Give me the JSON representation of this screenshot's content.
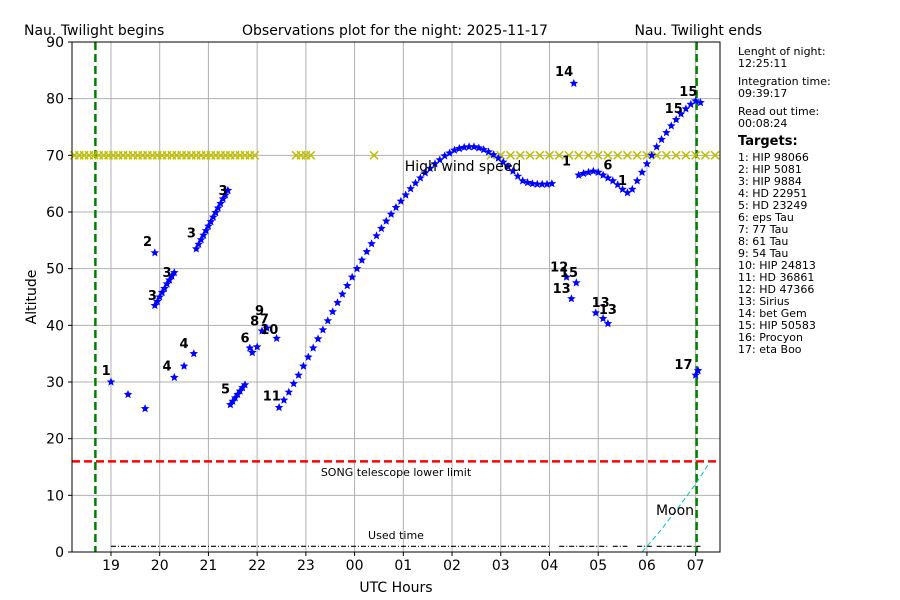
{
  "chart_data": {
    "type": "scatter",
    "title": "Observations plot for the night: 2025-11-17",
    "xlabel": "UTC Hours",
    "ylabel": "Altitude",
    "xlim": [
      18.2,
      31.5
    ],
    "ylim": [
      0,
      90
    ],
    "x_ticks": [
      {
        "v": 19,
        "label": "19"
      },
      {
        "v": 20,
        "label": "20"
      },
      {
        "v": 21,
        "label": "21"
      },
      {
        "v": 22,
        "label": "22"
      },
      {
        "v": 23,
        "label": "23"
      },
      {
        "v": 24,
        "label": "00"
      },
      {
        "v": 25,
        "label": "01"
      },
      {
        "v": 26,
        "label": "02"
      },
      {
        "v": 27,
        "label": "03"
      },
      {
        "v": 28,
        "label": "04"
      },
      {
        "v": 29,
        "label": "05"
      },
      {
        "v": 30,
        "label": "06"
      },
      {
        "v": 31,
        "label": "07"
      }
    ],
    "y_ticks": [
      0,
      10,
      20,
      30,
      40,
      50,
      60,
      70,
      80,
      90
    ],
    "grid": true,
    "twilight_begin": {
      "x": 18.68,
      "label": "Nau. Twilight begins"
    },
    "twilight_end": {
      "x": 31.02,
      "label": "Nau. Twilight ends"
    },
    "lower_limit": {
      "y": 16,
      "label": "SONG telescope lower limit"
    },
    "wind_limit": {
      "y": 70,
      "label": "High wind speed"
    },
    "used_time": {
      "y": 1,
      "label": "Used time",
      "segments": [
        [
          19.0,
          28.0
        ],
        [
          28.2,
          29.2
        ],
        [
          29.3,
          29.6
        ],
        [
          29.8,
          30.1
        ],
        [
          30.2,
          31.1
        ]
      ]
    },
    "moon": {
      "label": "Moon",
      "x": [
        29.9,
        30.3,
        30.7,
        31.0,
        31.3
      ],
      "y": [
        0,
        4,
        8.5,
        12,
        16
      ]
    },
    "wind_markers": {
      "x": [
        18.25,
        18.35,
        18.45,
        18.55,
        18.65,
        18.75,
        18.85,
        18.95,
        19.05,
        19.15,
        19.25,
        19.35,
        19.45,
        19.55,
        19.65,
        19.75,
        19.85,
        19.95,
        20.05,
        20.15,
        20.25,
        20.35,
        20.45,
        20.55,
        20.65,
        20.75,
        20.85,
        20.95,
        21.05,
        21.15,
        21.25,
        21.35,
        21.45,
        21.55,
        21.65,
        21.75,
        21.85,
        21.95,
        22.8,
        22.9,
        23.0,
        23.1,
        24.4,
        26.8,
        27.0,
        27.2,
        27.4,
        27.6,
        27.8,
        28.0,
        28.2,
        28.4,
        28.6,
        28.8,
        29.0,
        29.2,
        29.4,
        29.6,
        29.8,
        30.0,
        30.2,
        30.4,
        30.6,
        30.8,
        31.0,
        31.2,
        31.4
      ]
    },
    "series": [
      {
        "x": [
          19.0
        ],
        "y": [
          30.0
        ]
      },
      {
        "x": [
          19.35,
          19.7,
          19.9
        ],
        "y": [
          27.8,
          25.3,
          52.8
        ]
      },
      {
        "x": [
          19.9,
          19.95,
          20.0,
          20.05,
          20.1,
          20.15,
          20.2,
          20.25,
          20.3
        ],
        "y": [
          43.5,
          44.2,
          45.0,
          45.8,
          46.5,
          47.3,
          48.0,
          48.7,
          49.3
        ]
      },
      {
        "x": [
          20.3,
          20.5,
          20.7
        ],
        "y": [
          30.8,
          32.8,
          35.0
        ]
      },
      {
        "x": [
          21.45,
          21.5,
          21.55,
          21.6,
          21.65,
          21.7,
          21.75
        ],
        "y": [
          26.0,
          26.6,
          27.2,
          27.8,
          28.4,
          29.0,
          29.5
        ]
      },
      {
        "x": [
          21.85,
          21.9,
          22.0
        ],
        "y": [
          36.0,
          35.2,
          36.2
        ]
      },
      {
        "x": [
          22.1,
          22.2,
          22.4
        ],
        "y": [
          39.0,
          39.5,
          37.7
        ]
      },
      {
        "x": [
          20.75,
          20.8,
          20.85,
          20.9,
          20.95,
          21.0,
          21.05,
          21.1,
          21.15,
          21.2,
          21.25,
          21.3,
          21.35,
          21.4
        ],
        "y": [
          53.5,
          54.3,
          55.1,
          55.9,
          56.7,
          57.5,
          58.3,
          59.1,
          59.9,
          60.7,
          61.5,
          62.3,
          63.0,
          63.8
        ]
      },
      {
        "x": [
          22.45,
          22.55,
          22.65,
          22.75,
          22.85,
          22.95,
          23.05,
          23.15,
          23.25,
          23.35,
          23.45,
          23.55,
          23.65,
          23.75,
          23.85,
          23.95,
          24.05,
          24.15,
          24.25,
          24.35,
          24.45,
          24.55,
          24.65,
          24.75,
          24.85,
          24.95,
          25.05,
          25.15,
          25.25,
          25.35,
          25.45,
          25.55,
          25.65,
          25.75,
          25.85,
          25.95,
          26.05,
          26.15,
          26.25,
          26.35,
          26.45,
          26.55,
          26.65,
          26.75,
          26.85,
          26.95,
          27.05,
          27.15,
          27.25,
          27.35,
          27.45,
          27.55,
          27.65,
          27.75,
          27.85,
          27.95,
          28.05
        ],
        "y": [
          25.5,
          26.8,
          28.2,
          29.7,
          31.2,
          32.8,
          34.4,
          36.0,
          37.6,
          39.2,
          40.8,
          42.4,
          44.0,
          45.5,
          47.0,
          48.5,
          50.0,
          51.5,
          53.0,
          54.4,
          55.8,
          57.1,
          58.4,
          59.6,
          60.8,
          61.9,
          63.0,
          64.1,
          65.1,
          66.0,
          66.9,
          67.7,
          68.5,
          69.2,
          69.9,
          70.4,
          70.9,
          71.2,
          71.4,
          71.5,
          71.5,
          71.3,
          71.0,
          70.6,
          70.1,
          69.5,
          68.8,
          68.0,
          67.2,
          66.3,
          65.5,
          65.2,
          65.0,
          64.9,
          64.9,
          64.9,
          65.0
        ]
      },
      {
        "x": [
          28.35,
          28.45,
          28.55,
          28.95,
          29.1,
          29.2
        ],
        "y": [
          48.5,
          44.7,
          47.5,
          42.2,
          41.2,
          40.3
        ]
      },
      {
        "x": [
          28.5
        ],
        "y": [
          82.7
        ]
      },
      {
        "x": [
          28.6,
          28.7,
          28.8,
          28.9,
          29.0,
          29.1,
          29.2,
          29.3,
          29.4,
          29.5,
          29.6,
          29.7,
          29.8,
          29.9,
          30.0,
          30.1,
          30.2,
          30.3,
          30.4,
          30.5,
          30.6,
          30.7,
          30.8,
          30.9,
          31.0,
          31.1
        ],
        "y": [
          66.5,
          66.8,
          67.0,
          67.2,
          67.0,
          66.5,
          66.0,
          65.5,
          64.8,
          64.0,
          63.4,
          64.0,
          65.5,
          67.0,
          68.5,
          70.0,
          71.5,
          72.8,
          74.0,
          75.2,
          76.3,
          77.3,
          78.2,
          79.0,
          79.6,
          79.3
        ]
      },
      {
        "x": [
          31.0,
          31.05
        ],
        "y": [
          31.2,
          32.0
        ]
      }
    ],
    "point_labels": [
      {
        "text": "1",
        "x": 18.9,
        "y": 31.2
      },
      {
        "text": "2",
        "x": 19.75,
        "y": 54.0
      },
      {
        "text": "3",
        "x": 19.85,
        "y": 44.5
      },
      {
        "text": "3",
        "x": 20.15,
        "y": 48.5
      },
      {
        "text": "4",
        "x": 20.5,
        "y": 36.0
      },
      {
        "text": "4",
        "x": 20.15,
        "y": 32.0
      },
      {
        "text": "3",
        "x": 20.65,
        "y": 55.5
      },
      {
        "text": "3",
        "x": 21.3,
        "y": 63.0
      },
      {
        "text": "5",
        "x": 21.35,
        "y": 28.0
      },
      {
        "text": "6",
        "x": 21.75,
        "y": 37.0
      },
      {
        "text": "8",
        "x": 21.95,
        "y": 40.0
      },
      {
        "text": "9",
        "x": 22.05,
        "y": 41.8
      },
      {
        "text": "7",
        "x": 22.15,
        "y": 40.3
      },
      {
        "text": "10",
        "x": 22.25,
        "y": 38.5
      },
      {
        "text": "11",
        "x": 22.3,
        "y": 26.7
      },
      {
        "text": "12",
        "x": 28.2,
        "y": 49.5
      },
      {
        "text": "15",
        "x": 28.4,
        "y": 48.5
      },
      {
        "text": "13",
        "x": 28.25,
        "y": 45.7
      },
      {
        "text": "13",
        "x": 29.05,
        "y": 43.2
      },
      {
        "text": "13",
        "x": 29.2,
        "y": 42.0
      },
      {
        "text": "14",
        "x": 28.3,
        "y": 84.0
      },
      {
        "text": "1",
        "x": 28.35,
        "y": 68.2
      },
      {
        "text": "6",
        "x": 29.2,
        "y": 67.5
      },
      {
        "text": "1",
        "x": 29.5,
        "y": 64.8
      },
      {
        "text": "15",
        "x": 30.55,
        "y": 77.5
      },
      {
        "text": "15",
        "x": 30.85,
        "y": 80.5
      },
      {
        "text": "17",
        "x": 30.75,
        "y": 32.3
      }
    ]
  },
  "sidebar": {
    "night_length_label": "Lenght of night:",
    "night_length_value": "12:25:11",
    "integration_label": "Integration time:",
    "integration_value": "09:39:17",
    "readout_label": "Read out time:",
    "readout_value": "00:08:24",
    "targets_title": "Targets:",
    "targets": [
      "1: HIP 98066",
      "2: HIP 5081",
      "3: HIP 9884",
      "4: HD 22951",
      "5: HD 23249",
      "6: eps Tau",
      "7: 77 Tau",
      "8: 61 Tau",
      "9: 54 Tau",
      "10: HIP 24813",
      "11: HD 36861",
      "12: HD 47366",
      "13: Sirius",
      "14: bet Gem",
      "15: HIP 50583",
      "16: Procyon",
      "17: eta Boo"
    ]
  },
  "colors": {
    "stars": "#0000ff",
    "wind": "#bfbf00",
    "twilight": "#008000",
    "limit": "#ff0000",
    "moon": "#00bfbf",
    "grid": "#b0b0b0"
  }
}
